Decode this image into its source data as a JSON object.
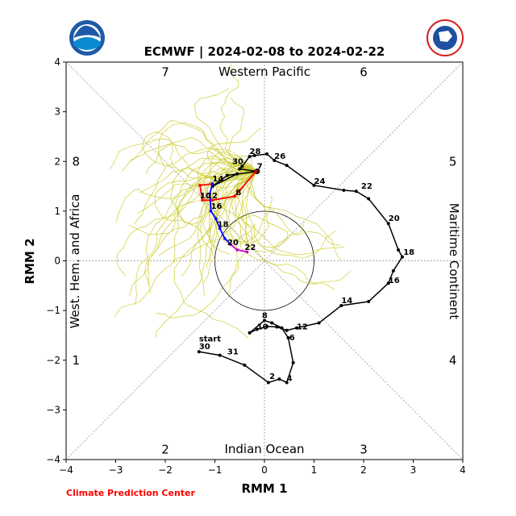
{
  "chart_data": {
    "type": "scatter",
    "title": "ECMWF | 2024-02-08 to 2024-02-22",
    "xlabel": "RMM 1",
    "ylabel": "RMM 2",
    "xlim": [
      -4,
      4
    ],
    "ylim": [
      -4,
      4
    ],
    "xticks": [
      "−4",
      "−3",
      "−2",
      "−1",
      "0",
      "1",
      "2",
      "3",
      "4"
    ],
    "yticks": [
      "−4",
      "−3",
      "−2",
      "−1",
      "0",
      "1",
      "2",
      "3",
      "4"
    ],
    "grid": false,
    "region_labels": {
      "top": "Western Pacific",
      "bottom": "Indian Ocean",
      "left": "West. Hem. and Africa",
      "right": "Maritime Continent"
    },
    "phase_numbers": [
      {
        "label": "7",
        "x": -2.0,
        "y": 3.8
      },
      {
        "label": "6",
        "x": 2.0,
        "y": 3.8
      },
      {
        "label": "8",
        "x": -3.8,
        "y": 2.0
      },
      {
        "label": "5",
        "x": 3.8,
        "y": 2.0
      },
      {
        "label": "1",
        "x": -3.8,
        "y": -2.0
      },
      {
        "label": "4",
        "x": 3.8,
        "y": -2.0
      },
      {
        "label": "2",
        "x": -2.0,
        "y": -3.8
      },
      {
        "label": "3",
        "x": 2.0,
        "y": -3.8
      }
    ],
    "unit_circle_radius": 1,
    "observed": {
      "color": "#000000",
      "points": [
        [
          -1.32,
          -1.83
        ],
        [
          -0.9,
          -1.9
        ],
        [
          -0.4,
          -2.1
        ],
        [
          0.08,
          -2.45
        ],
        [
          0.3,
          -2.38
        ],
        [
          0.45,
          -2.45
        ],
        [
          0.58,
          -2.05
        ],
        [
          0.48,
          -1.55
        ],
        [
          0.35,
          -1.35
        ],
        [
          0.15,
          -1.25
        ],
        [
          0.0,
          -1.2
        ],
        [
          -0.3,
          -1.45
        ],
        [
          -0.15,
          -1.38
        ],
        [
          0.05,
          -1.32
        ],
        [
          0.25,
          -1.33
        ],
        [
          0.45,
          -1.4
        ],
        [
          0.65,
          -1.35
        ],
        [
          1.1,
          -1.25
        ],
        [
          1.55,
          -0.9
        ],
        [
          2.1,
          -0.82
        ],
        [
          2.5,
          -0.45
        ],
        [
          2.6,
          -0.2
        ],
        [
          2.78,
          0.08
        ],
        [
          2.7,
          0.22
        ],
        [
          2.5,
          0.75
        ],
        [
          2.1,
          1.25
        ],
        [
          1.85,
          1.4
        ],
        [
          1.6,
          1.42
        ],
        [
          1.0,
          1.52
        ],
        [
          0.45,
          1.92
        ],
        [
          0.2,
          2.02
        ],
        [
          0.05,
          2.15
        ],
        [
          -0.2,
          2.12
        ],
        [
          -0.3,
          2.1
        ],
        [
          -0.45,
          1.9
        ],
        [
          -0.5,
          1.85
        ],
        [
          -0.15,
          1.8
        ],
        [
          -0.75,
          1.72
        ],
        [
          -1.05,
          1.5
        ],
        [
          -0.55,
          1.75
        ]
      ],
      "labels": [
        {
          "text": "start",
          "x": -1.32,
          "y": -1.62
        },
        {
          "text": "30",
          "x": -1.32,
          "y": -1.78
        },
        {
          "text": "31",
          "x": -0.75,
          "y": -1.88
        },
        {
          "text": "2",
          "x": 0.1,
          "y": -2.38
        },
        {
          "text": "4",
          "x": 0.45,
          "y": -2.42
        },
        {
          "text": "6",
          "x": 0.5,
          "y": -1.6
        },
        {
          "text": "8",
          "x": -0.05,
          "y": -1.15
        },
        {
          "text": "10",
          "x": -0.15,
          "y": -1.38
        },
        {
          "text": "12",
          "x": 0.65,
          "y": -1.38
        },
        {
          "text": "14",
          "x": 1.55,
          "y": -0.85
        },
        {
          "text": "16",
          "x": 2.5,
          "y": -0.45
        },
        {
          "text": "18",
          "x": 2.8,
          "y": 0.12
        },
        {
          "text": "20",
          "x": 2.5,
          "y": 0.8
        },
        {
          "text": "22",
          "x": 1.95,
          "y": 1.45
        },
        {
          "text": "24",
          "x": 1.0,
          "y": 1.55
        },
        {
          "text": "26",
          "x": 0.2,
          "y": 2.05
        },
        {
          "text": "28",
          "x": -0.3,
          "y": 2.15
        },
        {
          "text": "30",
          "x": -0.65,
          "y": 1.95
        },
        {
          "text": "7",
          "x": -0.15,
          "y": 1.85
        }
      ]
    },
    "ensemble_mean": {
      "series": [
        {
          "color": "#ff0000",
          "points": [
            [
              -0.17,
              1.8
            ],
            [
              -0.6,
              1.3
            ],
            [
              -1.05,
              1.22
            ],
            [
              -1.25,
              1.22
            ],
            [
              -1.3,
              1.52
            ],
            [
              -1.05,
              1.55
            ]
          ]
        },
        {
          "color": "#0000ff",
          "points": [
            [
              -1.05,
              1.55
            ],
            [
              -1.1,
              1.35
            ],
            [
              -1.08,
              1.0
            ],
            [
              -0.98,
              0.85
            ],
            [
              -0.9,
              0.65
            ],
            [
              -0.8,
              0.45
            ],
            [
              -0.68,
              0.33
            ]
          ]
        },
        {
          "color": "#cc00cc",
          "points": [
            [
              -0.68,
              0.33
            ],
            [
              -0.55,
              0.22
            ],
            [
              -0.35,
              0.18
            ]
          ]
        }
      ],
      "labels": [
        {
          "text": "8",
          "x": -0.58,
          "y": 1.32
        },
        {
          "text": "10",
          "x": -1.3,
          "y": 1.26
        },
        {
          "text": "12",
          "x": -1.17,
          "y": 1.26
        },
        {
          "text": "14",
          "x": -1.05,
          "y": 1.6
        },
        {
          "text": "16",
          "x": -1.08,
          "y": 1.05
        },
        {
          "text": "18",
          "x": -0.95,
          "y": 0.68
        },
        {
          "text": "20",
          "x": -0.75,
          "y": 0.32
        },
        {
          "text": "22",
          "x": -0.4,
          "y": 0.22
        }
      ]
    },
    "ensemble_members": {
      "color": "#c8c820",
      "count": 50,
      "start": [
        -0.17,
        1.8
      ]
    },
    "colors": {
      "observed": "#000000",
      "ensemble_members": "#c8c820",
      "ensemble_mean_week1": "#ff0000",
      "ensemble_mean_week2": "#0000ff",
      "ensemble_mean_end": "#cc00cc",
      "credit": "#ff0000"
    }
  },
  "logos": {
    "left": "NOAA",
    "right": "NATIONAL WEATHER SERVICE"
  },
  "credit": "Climate Prediction Center"
}
